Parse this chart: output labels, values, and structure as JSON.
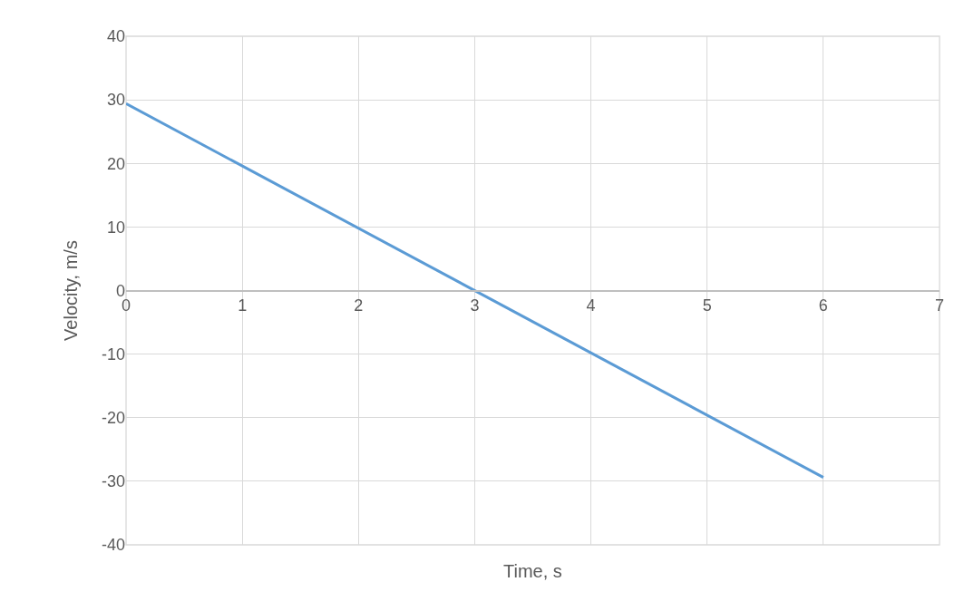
{
  "chart_data": {
    "type": "line",
    "xlabel": "Time, s",
    "ylabel": "Velocity, m/s",
    "x": [
      0,
      6
    ],
    "series": [
      {
        "color": "#5b9bd5",
        "values": [
          29.4,
          -29.4
        ]
      }
    ],
    "xlim": [
      0,
      7
    ],
    "xticks": [
      0,
      1,
      2,
      3,
      4,
      5,
      6,
      7
    ],
    "ylim": [
      -40,
      40
    ],
    "yticks": [
      -40,
      -30,
      -20,
      -10,
      0,
      10,
      20,
      30,
      40
    ],
    "grid": true,
    "marker": "none",
    "line_style": "solid"
  }
}
